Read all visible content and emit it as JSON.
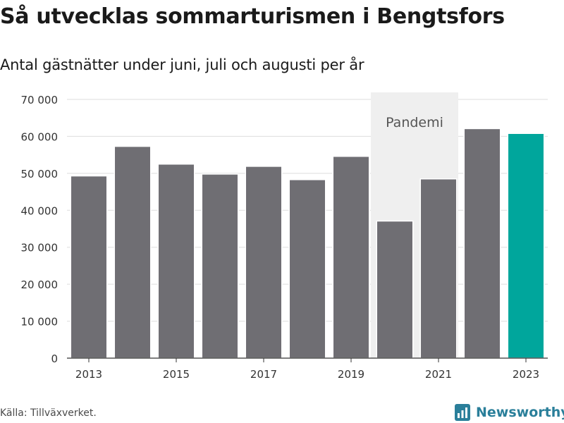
{
  "title": "Så utvecklas sommarturismen i Bengtsfors",
  "subtitle": "Antal gästnätter under juni, juli och augusti per år",
  "source": "Källa: Tillväxverket.",
  "brand": {
    "name": "Newsworthy",
    "icon": "newsworthy-logo-icon",
    "color": "#2a7f9a"
  },
  "chart_data": {
    "type": "bar",
    "categories": [
      "2013",
      "2014",
      "2015",
      "2016",
      "2017",
      "2018",
      "2019",
      "2020",
      "2021",
      "2022",
      "2023"
    ],
    "values": [
      49300,
      57300,
      52500,
      49800,
      51900,
      48300,
      54600,
      37100,
      48500,
      62100,
      60800
    ],
    "highlight_category": "2023",
    "bar_color": "#6f6e73",
    "highlight_color": "#00a69c",
    "x_tick_labels": [
      "2013",
      "2015",
      "2017",
      "2019",
      "2021",
      "2023"
    ],
    "y_ticks": [
      0,
      10000,
      20000,
      30000,
      40000,
      50000,
      60000,
      70000
    ],
    "y_tick_labels": [
      "0",
      "10 000",
      "20 000",
      "30 000",
      "40 000",
      "50 000",
      "60 000",
      "70 000"
    ],
    "ylim": [
      0,
      70000
    ],
    "grid": true,
    "shaded_region": {
      "label": "Pandemi",
      "from": "2020",
      "to": "2021",
      "color": "#efefef"
    }
  }
}
